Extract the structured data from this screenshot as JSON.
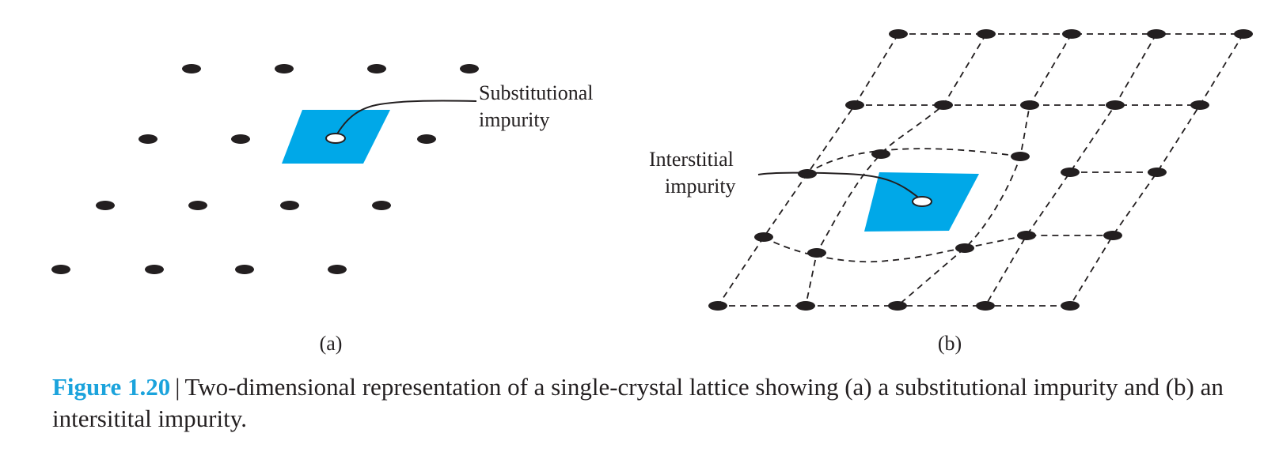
{
  "panel_a": {
    "label": "(a)",
    "annotation_line1": "Substitutional",
    "annotation_line2": "impurity"
  },
  "panel_b": {
    "label": "(b)",
    "annotation_line1": "Interstitial",
    "annotation_line2": "impurity"
  },
  "caption": {
    "figure_number": "Figure 1.20",
    "separator": "|",
    "text": "Two-dimensional representation of a single-crystal lattice showing (a) a substitutional impurity and (b) an intersitital impurity."
  },
  "colors": {
    "highlight": "#00a8e8",
    "atom": "#231f20",
    "caption_accent": "#1ba3dc"
  }
}
